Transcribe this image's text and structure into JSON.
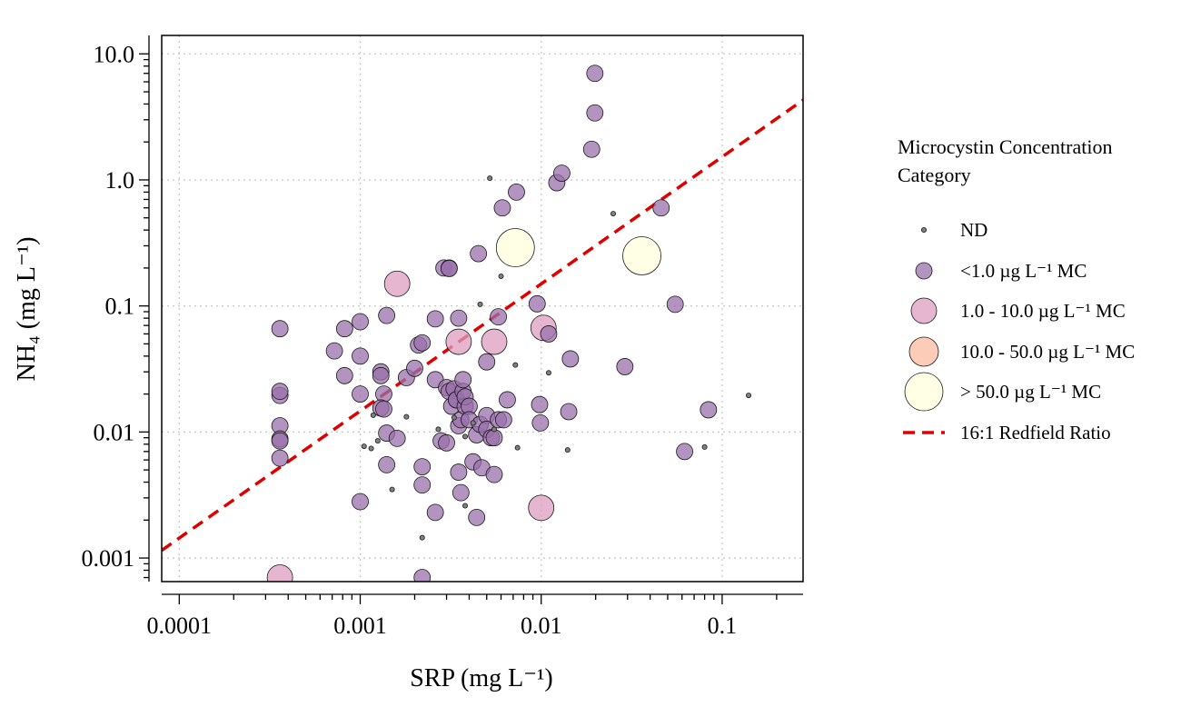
{
  "chart_data": {
    "type": "scatter",
    "xlabel": "SRP (mg L⁻¹)",
    "ylabel": "NH₄ (mg L⁻¹)",
    "xscale": "log",
    "yscale": "log",
    "xlim": [
      8e-05,
      0.28
    ],
    "ylim": [
      0.00065,
      14
    ],
    "x_ticks": [
      {
        "value": 0.0001,
        "label": "0.0001"
      },
      {
        "value": 0.001,
        "label": "0.001"
      },
      {
        "value": 0.01,
        "label": "0.01"
      },
      {
        "value": 0.1,
        "label": "0.1"
      }
    ],
    "y_ticks": [
      {
        "value": 0.001,
        "label": "0.001"
      },
      {
        "value": 0.01,
        "label": "0.01"
      },
      {
        "value": 0.1,
        "label": "0.1"
      },
      {
        "value": 1,
        "label": "1.0"
      },
      {
        "value": 10,
        "label": "10.0"
      }
    ],
    "grid": true,
    "legend": {
      "title_lines": [
        "Microcystin Concentration",
        "Category"
      ],
      "placement": "right"
    },
    "series": [
      {
        "name": "ND",
        "color": "#808080",
        "points": [
          [
            0.00115,
            0.0074
          ],
          [
            0.00105,
            0.0077
          ],
          [
            0.00125,
            0.0085
          ],
          [
            0.00118,
            0.0136
          ],
          [
            0.0018,
            0.0132
          ],
          [
            0.0015,
            0.0035
          ],
          [
            0.0022,
            0.00145
          ],
          [
            0.0027,
            0.0105
          ],
          [
            0.0033,
            0.013
          ],
          [
            0.0038,
            0.0092
          ],
          [
            0.0042,
            0.0118
          ],
          [
            0.0038,
            0.0026
          ],
          [
            0.0046,
            0.103
          ],
          [
            0.0052,
            1.03
          ],
          [
            0.006,
            0.172
          ],
          [
            0.0055,
            0.0105
          ],
          [
            0.0072,
            0.034
          ],
          [
            0.0074,
            0.0075
          ],
          [
            0.011,
            0.0295
          ],
          [
            0.014,
            0.0072
          ],
          [
            0.025,
            0.54
          ],
          [
            0.08,
            0.0076
          ],
          [
            0.14,
            0.0195
          ]
        ]
      },
      {
        "name": "<1.0 µg L⁻¹ MC",
        "color": "#9970ab",
        "points": [
          [
            0.00036,
            0.066
          ],
          [
            0.00036,
            0.0195
          ],
          [
            0.00036,
            0.021
          ],
          [
            0.00036,
            0.0112
          ],
          [
            0.00036,
            0.0088
          ],
          [
            0.00036,
            0.0085
          ],
          [
            0.00036,
            0.0062
          ],
          [
            0.00072,
            0.044
          ],
          [
            0.00082,
            0.066
          ],
          [
            0.00082,
            0.028
          ],
          [
            0.001,
            0.075
          ],
          [
            0.001,
            0.04
          ],
          [
            0.001,
            0.02
          ],
          [
            0.001,
            0.0028
          ],
          [
            0.0013,
            0.03
          ],
          [
            0.0013,
            0.028
          ],
          [
            0.00135,
            0.02
          ],
          [
            0.0013,
            0.0155
          ],
          [
            0.00135,
            0.0152
          ],
          [
            0.0014,
            0.084
          ],
          [
            0.0014,
            0.0098
          ],
          [
            0.0014,
            0.0055
          ],
          [
            0.0016,
            0.0089
          ],
          [
            0.0018,
            0.027
          ],
          [
            0.002,
            0.032
          ],
          [
            0.0021,
            0.049
          ],
          [
            0.0022,
            0.051
          ],
          [
            0.0022,
            0.0053
          ],
          [
            0.0022,
            0.0038
          ],
          [
            0.0022,
            0.0007
          ],
          [
            0.0026,
            0.079
          ],
          [
            0.0026,
            0.026
          ],
          [
            0.0026,
            0.0023
          ],
          [
            0.0028,
            0.0085
          ],
          [
            0.0029,
            0.2
          ],
          [
            0.0031,
            0.2
          ],
          [
            0.0031,
            0.198
          ],
          [
            0.003,
            0.0082
          ],
          [
            0.003,
            0.0225
          ],
          [
            0.0031,
            0.021
          ],
          [
            0.0033,
            0.022
          ],
          [
            0.0032,
            0.016
          ],
          [
            0.0034,
            0.018
          ],
          [
            0.0034,
            0.018
          ],
          [
            0.0035,
            0.08
          ],
          [
            0.0035,
            0.0112
          ],
          [
            0.0035,
            0.0048
          ],
          [
            0.0036,
            0.0033
          ],
          [
            0.0036,
            0.0125
          ],
          [
            0.0037,
            0.021
          ],
          [
            0.0037,
            0.026
          ],
          [
            0.0038,
            0.016
          ],
          [
            0.0038,
            0.019
          ],
          [
            0.004,
            0.016
          ],
          [
            0.004,
            0.0125
          ],
          [
            0.0042,
            0.0058
          ],
          [
            0.0044,
            0.0095
          ],
          [
            0.0044,
            0.0021
          ],
          [
            0.0045,
            0.26
          ],
          [
            0.0046,
            0.0115
          ],
          [
            0.0047,
            0.0052
          ],
          [
            0.005,
            0.0135
          ],
          [
            0.005,
            0.036
          ],
          [
            0.005,
            0.0105
          ],
          [
            0.0053,
            0.009
          ],
          [
            0.0055,
            0.0046
          ],
          [
            0.0055,
            0.009
          ],
          [
            0.0058,
            0.0125
          ],
          [
            0.0058,
            0.082
          ],
          [
            0.0061,
            0.6
          ],
          [
            0.0062,
            0.0125
          ],
          [
            0.0065,
            0.018
          ],
          [
            0.0073,
            0.8
          ],
          [
            0.0095,
            0.104
          ],
          [
            0.0098,
            0.0165
          ],
          [
            0.0099,
            0.0118
          ],
          [
            0.011,
            0.06
          ],
          [
            0.0122,
            0.95
          ],
          [
            0.013,
            1.13
          ],
          [
            0.0142,
            0.0145
          ],
          [
            0.0145,
            0.038
          ],
          [
            0.019,
            1.75
          ],
          [
            0.0198,
            7.0
          ],
          [
            0.0198,
            3.4
          ],
          [
            0.029,
            0.033
          ],
          [
            0.046,
            0.6
          ],
          [
            0.055,
            0.103
          ],
          [
            0.062,
            0.007
          ],
          [
            0.084,
            0.015
          ]
        ]
      },
      {
        "name": "1.0 - 10.0 µg L⁻¹ MC",
        "color": "#de9ec2",
        "points": [
          [
            0.0016,
            0.15
          ],
          [
            0.00036,
            0.0007
          ],
          [
            0.0035,
            0.052
          ],
          [
            0.0055,
            0.052
          ],
          [
            0.0103,
            0.067
          ],
          [
            0.01,
            0.0025
          ]
        ]
      },
      {
        "name": "10.0 - 50.0 µg L⁻¹ MC",
        "color": "#fcbba1",
        "points": []
      },
      {
        "name": "> 50.0 µg L⁻¹ MC",
        "color": "#ffffe0",
        "points": [
          [
            0.0072,
            0.29
          ],
          [
            0.036,
            0.25
          ]
        ]
      }
    ],
    "reference_line": {
      "name": "16:1 Redfield Ratio",
      "color": "#e00000",
      "style": "dashed",
      "points": [
        [
          8e-05,
          0.00115
        ],
        [
          0.28,
          4.3
        ]
      ]
    }
  }
}
